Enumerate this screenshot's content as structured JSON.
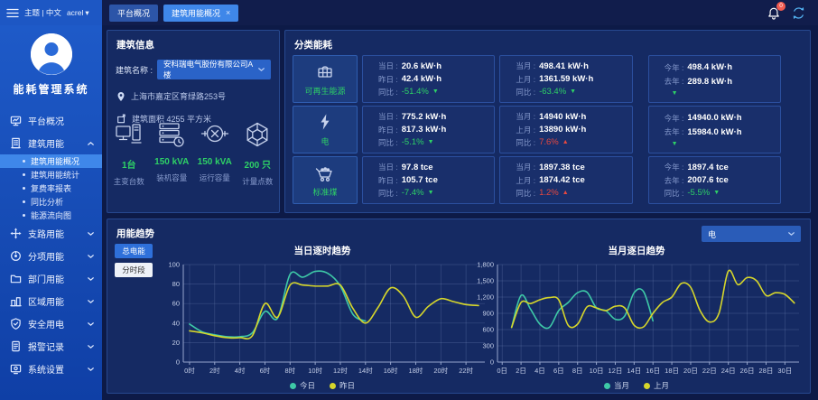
{
  "topbar": {
    "brand": "主题 | 中文",
    "user": "acrel",
    "caret": "▾",
    "tabs": [
      {
        "label": "平台概况"
      },
      {
        "label": "建筑用能概况",
        "close": "×"
      }
    ],
    "bell_badge": "0"
  },
  "sidebar": {
    "app_title": "能耗管理系统",
    "items": [
      {
        "label": "平台概况"
      },
      {
        "label": "建筑用能",
        "expanded": true
      },
      {
        "label": "支路用能"
      },
      {
        "label": "分项用能"
      },
      {
        "label": "部门用能"
      },
      {
        "label": "区域用能"
      },
      {
        "label": "安全用电"
      },
      {
        "label": "报警记录"
      },
      {
        "label": "系统设置"
      }
    ],
    "sub_items": [
      {
        "label": "建筑用能概况",
        "active": true
      },
      {
        "label": "建筑用能统计"
      },
      {
        "label": "复费率报表"
      },
      {
        "label": "同比分析"
      },
      {
        "label": "能源流向图"
      }
    ]
  },
  "building": {
    "panel_title": "建筑信息",
    "name_label": "建筑名称 :",
    "name_value": "安科瑞电气股份有限公司A楼",
    "address": "上海市嘉定区育绿路253号",
    "area": "建筑面积 4255 平方米",
    "stats": [
      {
        "value": "1台",
        "label": "主变台数"
      },
      {
        "value": "150 kVA",
        "label": "装机容量"
      },
      {
        "value": "150 kVA",
        "label": "运行容量"
      },
      {
        "value": "200 只",
        "label": "计量点数"
      }
    ]
  },
  "category": {
    "panel_title": "分类能耗",
    "rows": [
      {
        "name": "可再生能源",
        "cols": [
          {
            "l1": "当日 :",
            "v1": "20.6 kW·h",
            "l2": "昨日 :",
            "v2": "42.4 kW·h",
            "l3": "同比 :",
            "v3": "-51.4%",
            "arrow": "▼",
            "dir": "down"
          },
          {
            "l1": "当月 :",
            "v1": "498.41 kW·h",
            "l2": "上月 :",
            "v2": "1361.59 kW·h",
            "l3": "同比 :",
            "v3": "-63.4%",
            "arrow": "▼",
            "dir": "down"
          },
          {
            "l1": "今年 :",
            "v1": "498.4 kW·h",
            "l2": "去年 :",
            "v2": "289.8 kW·h",
            "l3": "",
            "v3": "",
            "arrow": "▼",
            "dir": "down"
          }
        ]
      },
      {
        "name": "电",
        "cols": [
          {
            "l1": "当日 :",
            "v1": "775.2 kW·h",
            "l2": "昨日 :",
            "v2": "817.3 kW·h",
            "l3": "同比 :",
            "v3": "-5.1%",
            "arrow": "▼",
            "dir": "down"
          },
          {
            "l1": "当月 :",
            "v1": "14940 kW·h",
            "l2": "上月 :",
            "v2": "13890 kW·h",
            "l3": "同比 :",
            "v3": "7.6%",
            "arrow": "▲",
            "dir": "up"
          },
          {
            "l1": "今年 :",
            "v1": "14940.0 kW·h",
            "l2": "去年 :",
            "v2": "15984.0 kW·h",
            "l3": "",
            "v3": "",
            "arrow": "▼",
            "dir": "down"
          }
        ]
      },
      {
        "name": "标准煤",
        "cols": [
          {
            "l1": "当日 :",
            "v1": "97.8 tce",
            "l2": "昨日 :",
            "v2": "105.7 tce",
            "l3": "同比 :",
            "v3": "-7.4%",
            "arrow": "▼",
            "dir": "down"
          },
          {
            "l1": "当月 :",
            "v1": "1897.38 tce",
            "l2": "上月 :",
            "v2": "1874.42 tce",
            "l3": "同比 :",
            "v3": "1.2%",
            "arrow": "▲",
            "dir": "up"
          },
          {
            "l1": "今年 :",
            "v1": "1897.4 tce",
            "l2": "去年 :",
            "v2": "2007.6 tce",
            "l3": "同比 :",
            "v3": "-5.5%",
            "arrow": "▼",
            "dir": "down"
          }
        ]
      }
    ]
  },
  "trend": {
    "panel_title": "用能趋势",
    "btn_total": "总电能",
    "btn_period": "分时段",
    "select_value": "电"
  },
  "colors": {
    "accent": "#3f87e9",
    "green": "#2ed166",
    "red": "#e8483f"
  },
  "chart_data": [
    {
      "type": "line",
      "title": "当日逐时趋势",
      "xmin": -0.5,
      "xmax": 23.5,
      "xticks": [
        0,
        2,
        4,
        6,
        8,
        10,
        12,
        14,
        16,
        18,
        20,
        22
      ],
      "xtick_labels": [
        "0时",
        "2时",
        "4时",
        "6时",
        "8时",
        "10时",
        "12时",
        "14时",
        "16时",
        "18时",
        "20时",
        "22时"
      ],
      "ylim": [
        0,
        100
      ],
      "ystep": 20,
      "grid": true,
      "legend_position": "bottom",
      "series": [
        {
          "name": "今日",
          "color": "#3ec9a7",
          "x": [
            0,
            1,
            2,
            3,
            4,
            5,
            6,
            7,
            8,
            9,
            10,
            11,
            12,
            13,
            14
          ],
          "y": [
            39,
            31,
            28,
            26,
            26,
            30,
            52,
            45,
            90,
            87,
            93,
            91,
            78,
            49,
            42
          ]
        },
        {
          "name": "昨日",
          "color": "#d6d62b",
          "x": [
            0,
            1,
            2,
            3,
            4,
            5,
            6,
            7,
            8,
            9,
            10,
            11,
            12,
            13,
            14,
            15,
            16,
            17,
            18,
            19,
            20,
            21,
            22,
            23
          ],
          "y": [
            32,
            30,
            27,
            25,
            25,
            27,
            60,
            46,
            79,
            79,
            78,
            78,
            79,
            55,
            40,
            56,
            76,
            68,
            46,
            57,
            65,
            62,
            59,
            58
          ]
        }
      ]
    },
    {
      "type": "line",
      "title": "当月逐日趋势",
      "xmin": -0.5,
      "xmax": 31.5,
      "xticks": [
        0,
        2,
        4,
        6,
        8,
        10,
        12,
        14,
        16,
        18,
        20,
        22,
        24,
        26,
        28,
        30
      ],
      "xtick_labels": [
        "0日",
        "2日",
        "4日",
        "6日",
        "8日",
        "10日",
        "12日",
        "14日",
        "16日",
        "18日",
        "20日",
        "22日",
        "24日",
        "26日",
        "28日",
        "30日"
      ],
      "ylim": [
        0,
        1800
      ],
      "ystep": 300,
      "grid": true,
      "legend_position": "bottom",
      "series": [
        {
          "name": "当月",
          "color": "#3ec9a7",
          "x": [
            1,
            2,
            3,
            4,
            5,
            6,
            7,
            8,
            9,
            10,
            11,
            12,
            13,
            14,
            15,
            16
          ],
          "y": [
            640,
            1230,
            980,
            700,
            640,
            950,
            1100,
            1280,
            1290,
            1000,
            950,
            790,
            850,
            1280,
            1300,
            760
          ]
        },
        {
          "name": "上月",
          "color": "#d6d62b",
          "x": [
            1,
            2,
            3,
            4,
            5,
            6,
            7,
            8,
            9,
            10,
            11,
            12,
            13,
            14,
            15,
            16,
            17,
            18,
            19,
            20,
            21,
            22,
            23,
            24,
            25,
            26,
            27,
            28,
            29,
            30,
            31
          ],
          "y": [
            640,
            1100,
            1080,
            1150,
            1190,
            1150,
            680,
            700,
            1020,
            1000,
            950,
            1030,
            1000,
            680,
            650,
            900,
            1100,
            1200,
            1450,
            1380,
            950,
            740,
            900,
            1680,
            1430,
            1560,
            1500,
            1230,
            1280,
            1250,
            1090
          ]
        }
      ]
    }
  ]
}
